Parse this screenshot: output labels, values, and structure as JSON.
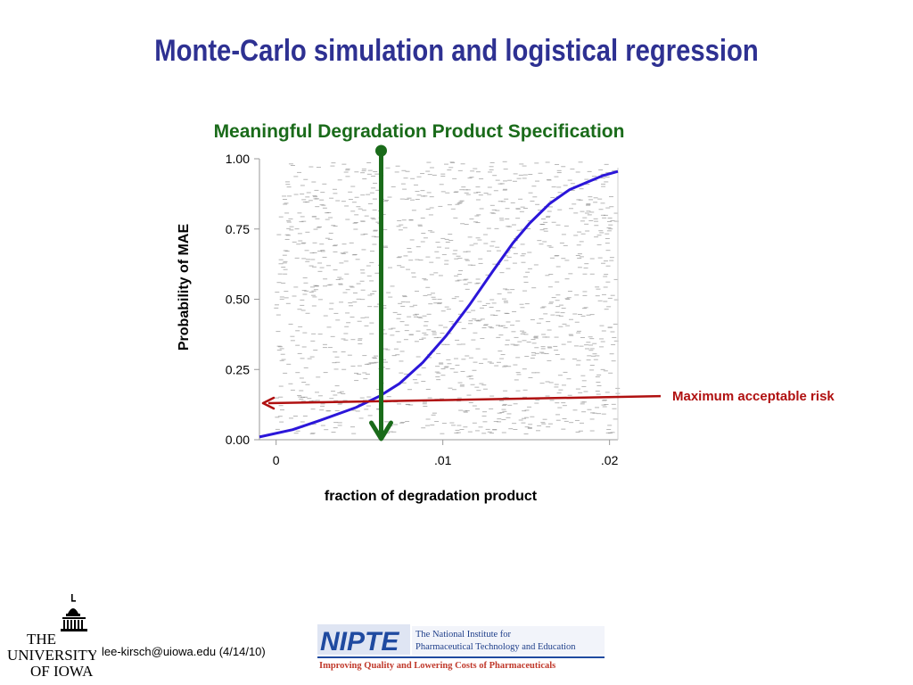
{
  "slide": {
    "title": "Monte-Carlo simulation and logistical regression",
    "footer_email": "lee-kirsch@uiowa.edu (4/14/10)",
    "logo_left": {
      "line1": "THE",
      "line2": "UNIVERSITY",
      "line3": "OF IOWA"
    },
    "logo_right": {
      "acronym": "NIPTE",
      "name_line1": "The National Institute for",
      "name_line2": "Pharmaceutical Technology and Education",
      "tagline": "Improving Quality and Lowering Costs of Pharmaceuticals"
    }
  },
  "chart_data": {
    "type": "scatter",
    "title": "Meaningful Degradation Product Specification",
    "xlabel": "fraction of degradation product",
    "ylabel": "Probability of MAE",
    "xlim": [
      -0.001,
      0.0205
    ],
    "ylim": [
      0,
      1
    ],
    "x_ticks": [
      {
        "value": 0,
        "label": "0"
      },
      {
        "value": 0.01,
        "label": ".01"
      },
      {
        "value": 0.02,
        "label": ".02"
      }
    ],
    "y_ticks": [
      {
        "value": 0,
        "label": "0.00"
      },
      {
        "value": 0.25,
        "label": "0.25"
      },
      {
        "value": 0.5,
        "label": "0.50"
      },
      {
        "value": 0.75,
        "label": "0.75"
      },
      {
        "value": 1,
        "label": "1.00"
      }
    ],
    "series": [
      {
        "kind": "logistic-fit",
        "color": "#2b16d9",
        "x": [
          -0.001,
          0.001,
          0.0026,
          0.0048,
          0.0062,
          0.0074,
          0.0088,
          0.0102,
          0.0116,
          0.013,
          0.0142,
          0.0152,
          0.0164,
          0.0176,
          0.0186,
          0.0196,
          0.0205
        ],
        "y": [
          0.01,
          0.036,
          0.068,
          0.115,
          0.155,
          0.2,
          0.275,
          0.37,
          0.48,
          0.6,
          0.7,
          0.77,
          0.84,
          0.89,
          0.915,
          0.94,
          0.955
        ]
      }
    ],
    "scatter_cloud": {
      "description_only": false,
      "count": 1400,
      "x_range": [
        0,
        0.0205
      ],
      "y_range": [
        0,
        1
      ],
      "color": "#7a7a7a"
    },
    "annotations": [
      {
        "kind": "vertical-arrow",
        "label": "",
        "x": 0.0063,
        "y_from": 1.03,
        "y_to": 0.0,
        "color": "#1a6b1a"
      },
      {
        "kind": "horizontal-arrow",
        "label": "Maximum acceptable risk",
        "y_left": 0.13,
        "y_right": 0.155,
        "color": "#b01010"
      }
    ],
    "grid": false,
    "legend": "none"
  }
}
